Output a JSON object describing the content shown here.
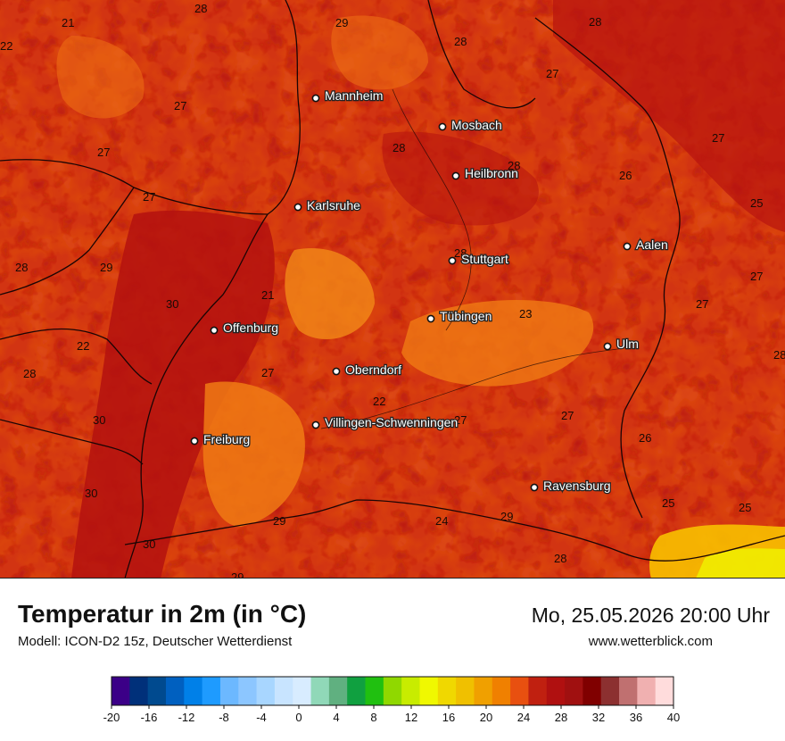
{
  "header": {
    "title": "Temperatur in 2m (in °C)",
    "model": "Modell: ICON-D2 15z, Deutscher Wetterdienst",
    "datetime": "Mo, 25.05.2026 20:00 Uhr",
    "website": "www.wetterblick.com"
  },
  "cities": [
    {
      "name": "Mannheim",
      "id": "mannheim"
    },
    {
      "name": "Mosbach",
      "id": "mosbach"
    },
    {
      "name": "Heilbronn",
      "id": "heilbronn"
    },
    {
      "name": "Karlsruhe",
      "id": "karlsruhe"
    },
    {
      "name": "Aalen",
      "id": "aalen"
    },
    {
      "name": "Stuttgart",
      "id": "stuttgart"
    },
    {
      "name": "Tübingen",
      "id": "tuebingen"
    },
    {
      "name": "Offenburg",
      "id": "offenburg"
    },
    {
      "name": "Ulm",
      "id": "ulm"
    },
    {
      "name": "Oberndorf",
      "id": "oberndorf"
    },
    {
      "name": "Villingen-Schwenningen",
      "id": "villingen"
    },
    {
      "name": "Freiburg",
      "id": "freiburg"
    },
    {
      "name": "Ravensburg",
      "id": "ravensburg"
    }
  ],
  "temperature_labels": [
    "28",
    "21",
    "29",
    "28",
    "28",
    "22",
    "27",
    "27",
    "27",
    "28",
    "28",
    "26",
    "27",
    "25",
    "27",
    "28",
    "29",
    "21",
    "28",
    "30",
    "23",
    "27",
    "27",
    "22",
    "28",
    "28",
    "27",
    "22",
    "27",
    "30",
    "26",
    "27",
    "30",
    "29",
    "24",
    "29",
    "25",
    "25",
    "30",
    "28",
    "29"
  ],
  "legend": {
    "ticks": [
      "-20",
      "-16",
      "-12",
      "-8",
      "-4",
      "0",
      "4",
      "8",
      "12",
      "16",
      "20",
      "24",
      "28",
      "32",
      "36",
      "40"
    ],
    "colors": [
      "#3b0087",
      "#00307a",
      "#004a8f",
      "#0060c0",
      "#0080e8",
      "#1e9bff",
      "#6cb8ff",
      "#8cc6ff",
      "#a8d6ff",
      "#c8e4ff",
      "#d8ecff",
      "#90d8b8",
      "#60b080",
      "#10a040",
      "#20c010",
      "#90d800",
      "#c8ec00",
      "#f0f800",
      "#f0d800",
      "#f0c000",
      "#f0a000",
      "#f08000",
      "#e85010",
      "#c02010",
      "#b01010",
      "#a01010",
      "#800000",
      "#8c3030",
      "#c07070",
      "#f0b0b0",
      "#ffdcdc"
    ]
  }
}
